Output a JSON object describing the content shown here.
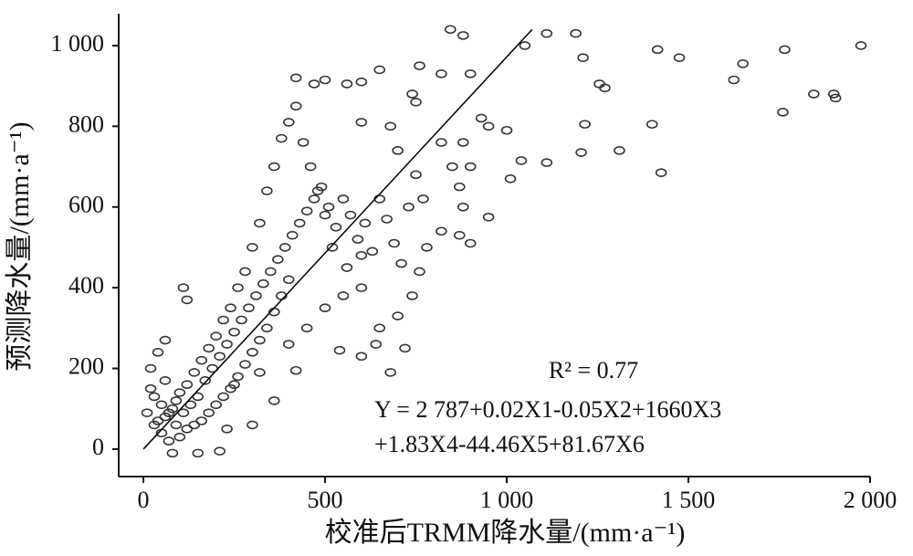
{
  "chart_data": {
    "type": "scatter",
    "xlabel": "校准后TRMM降水量/(mm·a⁻¹)",
    "ylabel": "预测降水量/(mm·a⁻¹)",
    "xlim": [
      -68,
      2000
    ],
    "ylim": [
      -68,
      1079
    ],
    "xticks": [
      0,
      500,
      {
        "value": 1000,
        "label": "1 000"
      },
      {
        "value": 1500,
        "label": "1 500"
      },
      {
        "value": 2000,
        "label": "2 000"
      }
    ],
    "yticks": [
      0,
      200,
      400,
      600,
      800,
      {
        "value": 1000,
        "label": "1 000"
      }
    ],
    "series": [
      {
        "color": "#333333",
        "x": [
          845,
          880,
          1050,
          1110,
          1190,
          1210,
          1415,
          1475,
          1650,
          1765,
          1975,
          1255,
          1270,
          1625,
          1845,
          1900,
          1905,
          1760,
          1400,
          1215,
          1425,
          1310,
          1205,
          1110,
          1040,
          1000,
          950,
          930,
          900,
          820,
          760,
          650,
          600,
          560,
          500,
          420,
          470,
          740,
          750,
          1010,
          900,
          870,
          950,
          680,
          720,
          540,
          600,
          640,
          400,
          420,
          360,
          300,
          230,
          150,
          210,
          80,
          420,
          400,
          600,
          680,
          700,
          820,
          850,
          870,
          880,
          820,
          780,
          760,
          740,
          700,
          650,
          600,
          560,
          520,
          500,
          480,
          460,
          440,
          380,
          360,
          340,
          320,
          300,
          280,
          260,
          240,
          220,
          200,
          180,
          160,
          140,
          120,
          100,
          90,
          80,
          70,
          60,
          50,
          40,
          30,
          20,
          10,
          60,
          90,
          110,
          130,
          150,
          170,
          190,
          210,
          230,
          250,
          270,
          290,
          310,
          330,
          350,
          370,
          390,
          410,
          430,
          450,
          470,
          490,
          510,
          530,
          550,
          570,
          590,
          610,
          630,
          650,
          670,
          690,
          710,
          730,
          750,
          770,
          400,
          380,
          360,
          340,
          320,
          300,
          280,
          260,
          240,
          220,
          200,
          180,
          160,
          140,
          120,
          100,
          70,
          50,
          30,
          110,
          120,
          60,
          40,
          20,
          250,
          320,
          450,
          500,
          550,
          600,
          900,
          880
        ],
        "y": [
          1040,
          1025,
          1000,
          1030,
          1030,
          970,
          990,
          970,
          955,
          990,
          1000,
          905,
          895,
          915,
          880,
          880,
          870,
          835,
          805,
          805,
          685,
          740,
          735,
          710,
          715,
          790,
          800,
          820,
          930,
          930,
          950,
          940,
          910,
          905,
          915,
          920,
          905,
          880,
          860,
          670,
          510,
          530,
          575,
          190,
          250,
          245,
          230,
          260,
          260,
          195,
          120,
          60,
          50,
          -10,
          -5,
          -10,
          850,
          810,
          810,
          800,
          740,
          760,
          700,
          650,
          600,
          540,
          500,
          440,
          380,
          330,
          300,
          400,
          450,
          500,
          580,
          640,
          700,
          760,
          770,
          700,
          640,
          560,
          500,
          440,
          400,
          350,
          320,
          280,
          250,
          220,
          190,
          160,
          140,
          120,
          100,
          90,
          80,
          110,
          70,
          130,
          150,
          90,
          170,
          60,
          90,
          110,
          130,
          170,
          200,
          230,
          260,
          290,
          320,
          350,
          380,
          410,
          440,
          470,
          500,
          530,
          560,
          590,
          620,
          650,
          600,
          550,
          620,
          580,
          520,
          560,
          490,
          620,
          570,
          510,
          460,
          600,
          680,
          620,
          420,
          380,
          340,
          300,
          270,
          240,
          210,
          180,
          150,
          130,
          110,
          90,
          70,
          60,
          50,
          30,
          20,
          40,
          60,
          400,
          370,
          270,
          240,
          200,
          160,
          190,
          300,
          350,
          380,
          480,
          700,
          760
        ]
      }
    ],
    "fit_line": {
      "x": [
        0,
        1070
      ],
      "y": [
        0,
        1040
      ]
    },
    "annotations": [
      "R² = 0.77",
      "Y = 2 787+0.02X1-0.05X2+1660X3",
      "+1.83X4-44.46X5+81.67X6"
    ]
  }
}
